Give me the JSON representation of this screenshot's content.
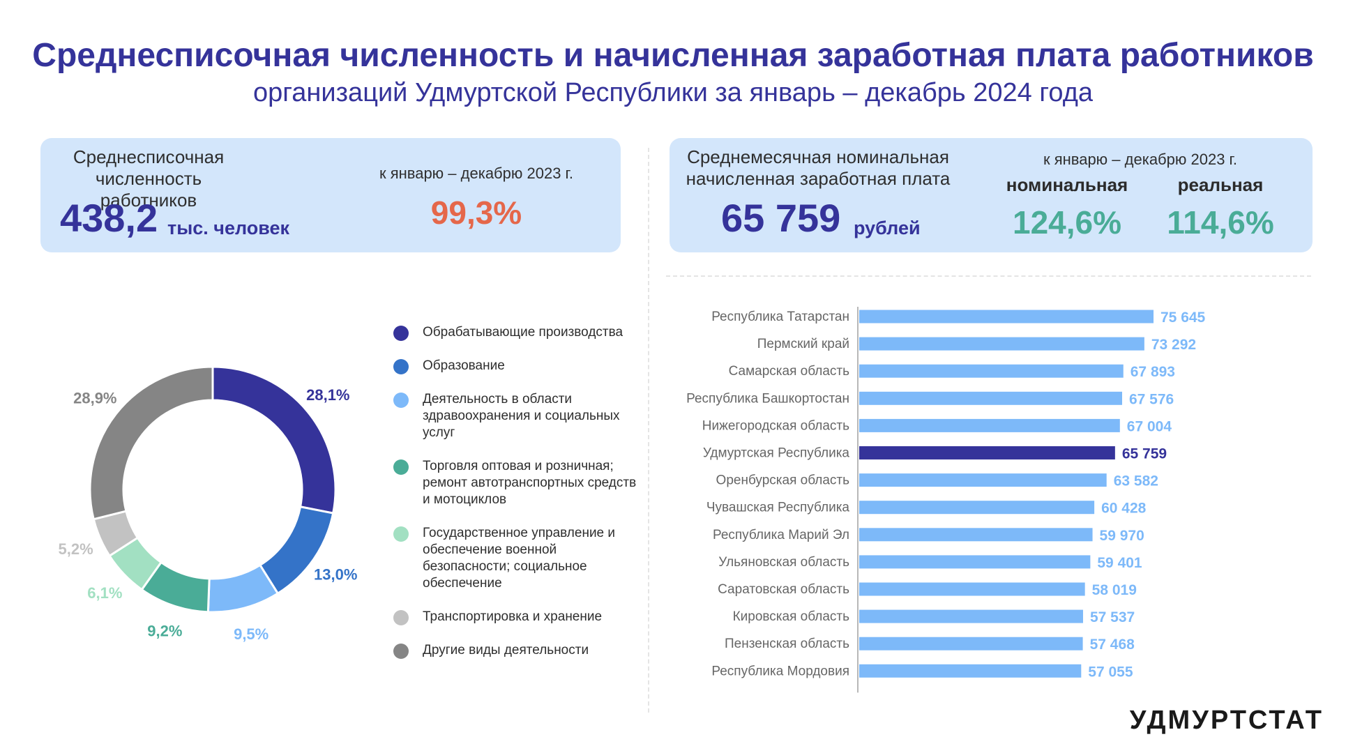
{
  "title": "Среднесписочная численность и начисленная заработная плата работников",
  "subtitle": "организаций Удмуртской Республики за январь – декабрь 2024 года",
  "headcount": {
    "label_line1": "Среднесписочная",
    "label_line2": "численность работников",
    "value": "438,2",
    "unit": "тыс. человек",
    "comparison_label": "к январю – декабрю 2023 г.",
    "comparison_value": "99,3%"
  },
  "salary": {
    "label_line1": "Среднемесячная номинальная",
    "label_line2": "начисленная заработная плата",
    "value": "65 759",
    "unit": "рублей",
    "comparison_label": "к январю – декабрю 2023 г.",
    "nominal_label": "номинальная",
    "nominal_value": "124,6%",
    "real_label": "реальная",
    "real_value": "114,6%"
  },
  "colors": {
    "accent": "#35339a",
    "negative": "#e5674a",
    "positive": "#4aac97",
    "card_bg": "#d3e6fb",
    "bar": "#7db9f9",
    "bar_highlight": "#35339a",
    "bar_label": "#7db9f9"
  },
  "logo": "УДМУРТСТАТ",
  "chart_data": [
    {
      "type": "pie",
      "categories": [
        "Обрабатывающие производства",
        "Образование",
        "Деятельность в области здравоохранения и социальных услуг",
        "Торговля оптовая и розничная; ремонт автотранспортных средств и мотоциклов",
        "Государственное управление и обеспечение военной безопасности; социальное обеспечение",
        "Транспортировка и хранение",
        "Другие виды деятельности"
      ],
      "values": [
        28.1,
        13.0,
        9.5,
        9.2,
        6.1,
        5.2,
        28.9
      ],
      "labels": [
        "28,1%",
        "13,0%",
        "9,5%",
        "9,2%",
        "6,1%",
        "5,2%",
        "28,9%"
      ],
      "colors": [
        "#35339a",
        "#3473c8",
        "#7db9f9",
        "#4aac97",
        "#a2e0c2",
        "#c2c2c2",
        "#858585"
      ],
      "legend": "right"
    },
    {
      "type": "bar",
      "orientation": "horizontal",
      "categories": [
        "Республика Татарстан",
        "Пермский край",
        "Самарская область",
        "Республика Башкортостан",
        "Нижегородская область",
        "Удмуртская Республика",
        "Оренбурская область",
        "Чувашская Республика",
        "Республика Марий Эл",
        "Ульяновская область",
        "Саратовская область",
        "Кировская область",
        "Пензенская область",
        "Республика Мордовия"
      ],
      "values": [
        75645,
        73292,
        67893,
        67576,
        67004,
        65759,
        63582,
        60428,
        59970,
        59401,
        58019,
        57537,
        57468,
        57055
      ],
      "labels": [
        "75 645",
        "73 292",
        "67 893",
        "67 576",
        "67 004",
        "65 759",
        "63 582",
        "60 428",
        "59 970",
        "59 401",
        "58 019",
        "57 537",
        "57 468",
        "57 055"
      ],
      "highlight": "Удмуртская Республика",
      "xlim": [
        0,
        75645
      ]
    }
  ]
}
